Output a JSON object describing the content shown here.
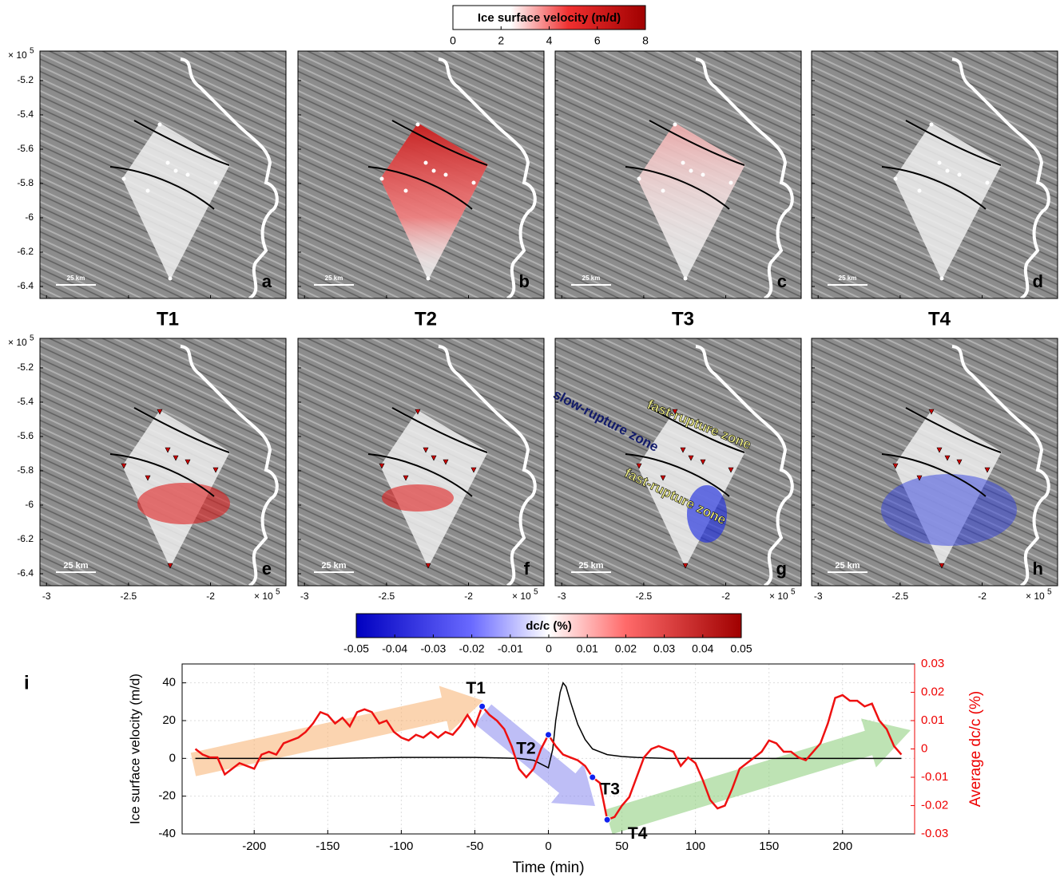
{
  "velocity_colorbar": {
    "title": "Ice surface velocity (m/d)",
    "lim": [
      0,
      8
    ],
    "ticks": [
      0,
      2,
      4,
      6,
      8
    ]
  },
  "dcc_colorbar": {
    "title": "dc/c (%)",
    "lim": [
      -0.05,
      0.05
    ],
    "ticks": [
      -0.05,
      -0.04,
      -0.03,
      -0.02,
      -0.01,
      0,
      0.01,
      0.02,
      0.03,
      0.04,
      0.05
    ]
  },
  "map_axes": {
    "xlim": [
      -3.04,
      -1.54
    ],
    "xticks": [
      -3,
      -2.5,
      -2
    ],
    "ylim": [
      -5.028,
      -6.47
    ],
    "yticks": [
      -5.2,
      -5.4,
      -5.6,
      -5.8,
      -6,
      -6.2,
      -6.4
    ],
    "exponent_base": "× 10",
    "exponent": 5
  },
  "panels": [
    {
      "label": "a",
      "scale_bar": "25 km"
    },
    {
      "label": "b",
      "scale_bar": "25 km"
    },
    {
      "label": "c",
      "scale_bar": "25 km"
    },
    {
      "label": "d",
      "scale_bar": "25 km"
    },
    {
      "label": "e",
      "scale_bar": "25 km"
    },
    {
      "label": "f",
      "scale_bar": "25 km"
    },
    {
      "label": "g",
      "scale_bar": "25 km"
    },
    {
      "label": "h",
      "scale_bar": "25 km"
    }
  ],
  "time_labels": [
    "T1",
    "T2",
    "T3",
    "T4"
  ],
  "map_annotations": [
    "slow-rupture zone",
    "fast-rupture zone",
    "fast-rupture zone"
  ],
  "chart_data": {
    "type": "line",
    "panel_label": "i",
    "xlabel": "Time (min)",
    "ylabel": "Ice surface velocity (m/d)",
    "y2label": "Average dc/c (%)",
    "xlim": [
      -249,
      249
    ],
    "xticks": [
      -200,
      -150,
      -100,
      -50,
      0,
      50,
      100,
      150,
      200
    ],
    "ylim": [
      -40,
      50
    ],
    "yticks": [
      -40,
      -20,
      0,
      20,
      40
    ],
    "y2lim": [
      -0.03,
      0.03
    ],
    "y2ticks": [
      -0.03,
      -0.02,
      -0.01,
      0,
      0.01,
      0.02,
      0.03
    ],
    "grid": true,
    "series": [
      {
        "name": "Ice surface velocity",
        "color": "#000000",
        "x": [
          -240,
          -200,
          -150,
          -100,
          -50,
          -20,
          -10,
          -5,
          0,
          3,
          5,
          8,
          10,
          12,
          15,
          20,
          25,
          30,
          40,
          50,
          60,
          80,
          100,
          150,
          200,
          240
        ],
        "values": [
          0,
          0,
          0,
          0.5,
          0.5,
          0,
          -1,
          -3,
          -5,
          5,
          20,
          35,
          40,
          38,
          30,
          18,
          10,
          5,
          2,
          1,
          0.5,
          0,
          0,
          0,
          0,
          0
        ]
      },
      {
        "name": "Average dc/c",
        "color": "#ee1111",
        "axis": "y2",
        "x": [
          -240,
          -235,
          -230,
          -225,
          -220,
          -215,
          -210,
          -205,
          -200,
          -195,
          -190,
          -185,
          -180,
          -175,
          -170,
          -165,
          -160,
          -155,
          -150,
          -145,
          -140,
          -135,
          -130,
          -125,
          -120,
          -115,
          -110,
          -105,
          -100,
          -95,
          -90,
          -85,
          -80,
          -75,
          -70,
          -65,
          -60,
          -55,
          -50,
          -45,
          -40,
          -35,
          -30,
          -25,
          -20,
          -15,
          -10,
          -5,
          0,
          5,
          10,
          15,
          20,
          25,
          30,
          35,
          40,
          45,
          50,
          55,
          60,
          65,
          70,
          75,
          80,
          85,
          90,
          95,
          100,
          105,
          110,
          115,
          120,
          125,
          130,
          135,
          140,
          145,
          150,
          155,
          160,
          165,
          170,
          175,
          180,
          185,
          190,
          195,
          200,
          205,
          210,
          215,
          220,
          225,
          230,
          235,
          240
        ],
        "values": [
          0,
          -0.002,
          -0.003,
          -0.003,
          -0.009,
          -0.007,
          -0.005,
          -0.006,
          -0.007,
          -0.002,
          -0.001,
          -0.002,
          0.002,
          0.003,
          0.004,
          0.006,
          0.009,
          0.013,
          0.012,
          0.009,
          0.011,
          0.008,
          0.013,
          0.014,
          0.013,
          0.009,
          0.01,
          0.006,
          0.004,
          0.003,
          0.005,
          0.004,
          0.006,
          0.004,
          0.006,
          0.005,
          0.008,
          0.012,
          0.008,
          0.015,
          0.012,
          0.01,
          0.007,
          0.001,
          -0.007,
          -0.01,
          -0.007,
          0,
          0.005,
          0.001,
          -0.002,
          -0.003,
          -0.004,
          -0.006,
          -0.01,
          -0.012,
          -0.025,
          -0.024,
          -0.02,
          -0.017,
          -0.01,
          -0.003,
          0,
          0.001,
          0,
          -0.001,
          -0.006,
          -0.003,
          -0.005,
          -0.011,
          -0.018,
          -0.021,
          -0.02,
          -0.014,
          -0.007,
          -0.005,
          -0.003,
          -0.001,
          0.003,
          0.002,
          -0.001,
          -0.001,
          -0.003,
          -0.004,
          -0.001,
          0.002,
          0.009,
          0.018,
          0.019,
          0.017,
          0.017,
          0.015,
          0.016,
          0.01,
          0.007,
          0.001,
          -0.002
        ]
      }
    ],
    "key_points": [
      {
        "name": "T1",
        "x": -45,
        "y2": 0.015
      },
      {
        "name": "T2",
        "x": 0,
        "y2": 0.005
      },
      {
        "name": "T3",
        "x": 30,
        "y2": -0.01
      },
      {
        "name": "T4",
        "x": 40,
        "y2": -0.025
      }
    ],
    "key_point_color": "#1122ee"
  }
}
